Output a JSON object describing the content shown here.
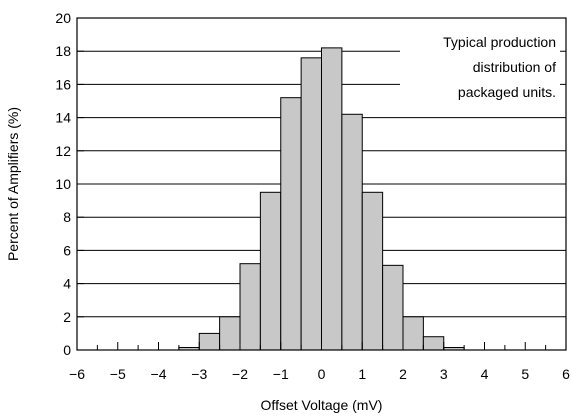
{
  "chart_data": {
    "type": "bar",
    "xlabel": "Offset Voltage (mV)",
    "ylabel": "Percent of Amplifiers (%)",
    "xlim": [
      -6,
      6
    ],
    "ylim": [
      0,
      20
    ],
    "x_ticks": [
      "−6",
      "−5",
      "−4",
      "−3",
      "−2",
      "−1",
      "0",
      "1",
      "2",
      "3",
      "4",
      "5",
      "6"
    ],
    "x_tick_values": [
      -6,
      -5,
      -4,
      -3,
      -2,
      -1,
      0,
      1,
      2,
      3,
      4,
      5,
      6
    ],
    "y_ticks": [
      "0",
      "2",
      "4",
      "6",
      "8",
      "10",
      "12",
      "14",
      "16",
      "18",
      "20"
    ],
    "y_tick_values": [
      0,
      2,
      4,
      6,
      8,
      10,
      12,
      14,
      16,
      18,
      20
    ],
    "bin_width": 0.5,
    "bins": [
      {
        "x0": -3.5,
        "value": 0.15
      },
      {
        "x0": -3.0,
        "value": 1.0
      },
      {
        "x0": -2.5,
        "value": 2.0
      },
      {
        "x0": -2.0,
        "value": 5.2
      },
      {
        "x0": -1.5,
        "value": 9.5
      },
      {
        "x0": -1.0,
        "value": 15.2
      },
      {
        "x0": -0.5,
        "value": 17.6
      },
      {
        "x0": 0.0,
        "value": 18.2
      },
      {
        "x0": 0.5,
        "value": 14.2
      },
      {
        "x0": 1.0,
        "value": 9.5
      },
      {
        "x0": 1.5,
        "value": 5.1
      },
      {
        "x0": 2.0,
        "value": 2.0
      },
      {
        "x0": 2.5,
        "value": 0.8
      },
      {
        "x0": 3.0,
        "value": 0.15
      }
    ],
    "annotation": [
      "Typical production",
      "distribution of",
      "packaged units."
    ],
    "bar_color": "#c8c8c8",
    "grid": true
  }
}
